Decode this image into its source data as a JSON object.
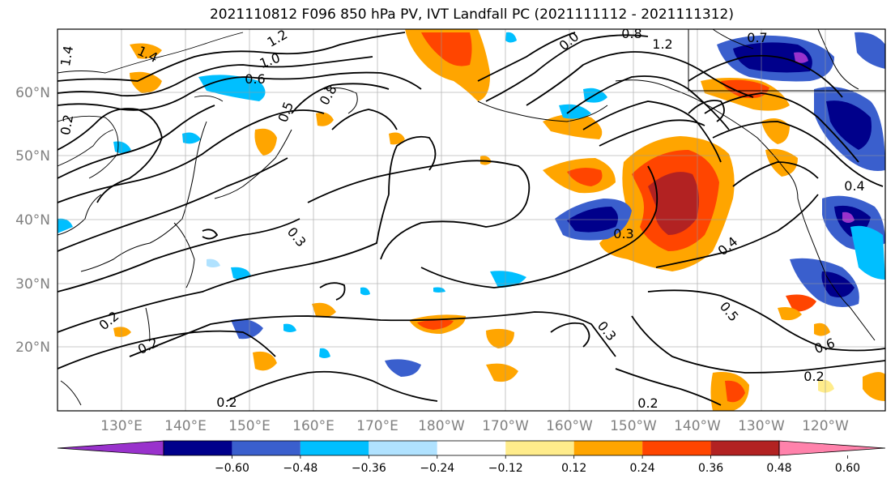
{
  "title": "2021110812 F096 850 hPa PV, IVT Landfall PC (2021111112 - 2021111312)",
  "lat_labels": [
    "60°N",
    "50°N",
    "40°N",
    "30°N",
    "20°N"
  ],
  "lon_labels": [
    "130°E",
    "140°E",
    "150°E",
    "160°E",
    "170°E",
    "180°W",
    "170°W",
    "160°W",
    "150°W",
    "140°W",
    "130°W",
    "120°W"
  ],
  "colorbar": {
    "ticks": [
      "−0.60",
      "−0.48",
      "−0.36",
      "−0.24",
      "−0.12",
      "0.12",
      "0.24",
      "0.36",
      "0.48",
      "0.60"
    ],
    "colors": [
      "#9932cc",
      "#00008b",
      "#3a5fcd",
      "#00bfff",
      "#b0e2ff",
      "#ffffff",
      "#ffec8b",
      "#ffa500",
      "#ff4500",
      "#b22222",
      "#ff82ab"
    ]
  },
  "contour_labels": [
    "1.4",
    "1.2",
    "1.0",
    "0.6",
    "0.5",
    "0.8",
    "1.2",
    "0.7",
    "0.8",
    "1.4",
    "0.3",
    "0.3",
    "0.4",
    "0.5",
    "0.6",
    "0.2",
    "0.2",
    "0.2",
    "0.2",
    "0.2",
    "0.3",
    "0.4",
    "0.2",
    "0.0"
  ]
}
